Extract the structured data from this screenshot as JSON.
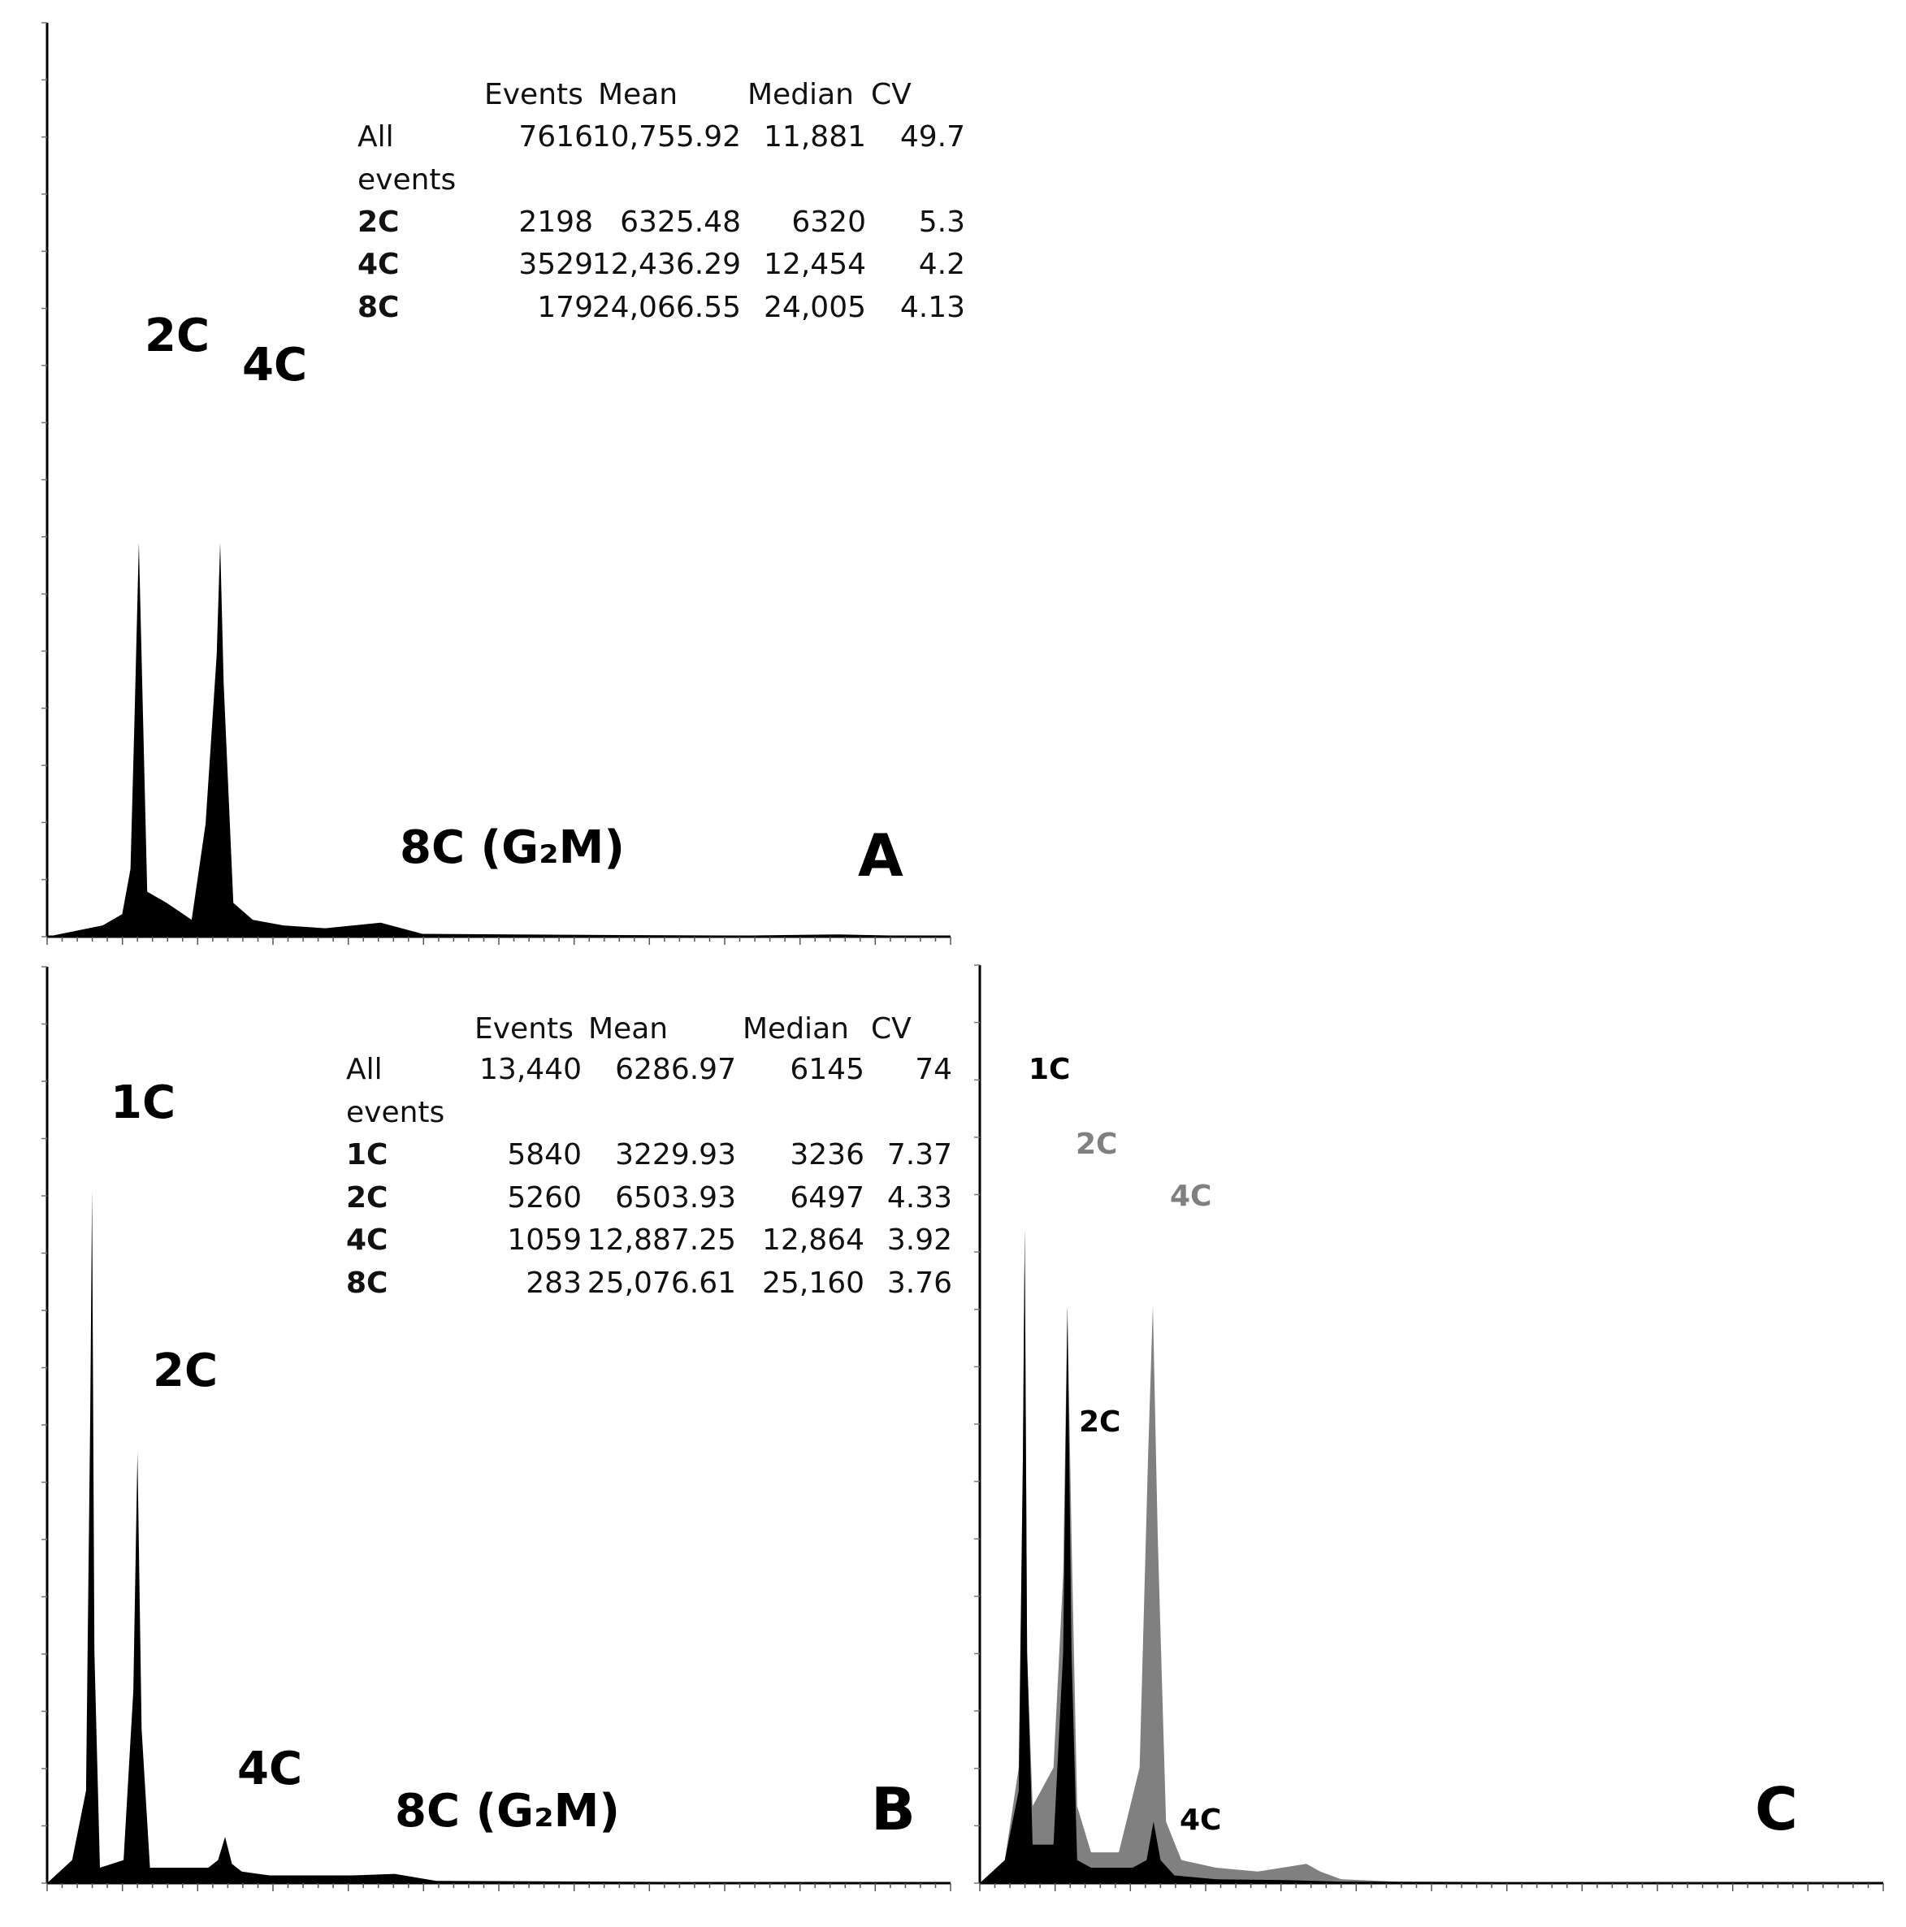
{
  "chart_data": [
    {
      "panel": "A",
      "type": "area",
      "series": [
        {
          "x": [
            0,
            4000,
            5400,
            6000,
            6300,
            6600,
            7200,
            8600,
            10400,
            11400,
            12200,
            12450,
            12700,
            13400,
            14800,
            17000,
            20000,
            24000,
            27000,
            40000,
            50000,
            57000,
            65000
          ],
          "values": [
            0,
            2,
            4,
            12,
            40,
            70,
            8,
            6,
            3,
            20,
            50,
            70,
            45,
            6,
            3,
            2,
            1.5,
            2.5,
            0.5,
            0.3,
            0.2,
            0.4,
            0
          ]
        }
      ],
      "xlim": [
        0,
        65000
      ],
      "ylim": [
        0,
        100
      ],
      "peak_labels": [
        {
          "text": "2C",
          "x": 6300
        },
        {
          "text": "4C",
          "x": 12450
        },
        {
          "text": "8C (G₂M)",
          "x": 24000
        }
      ],
      "stats_table": {
        "columns": [
          "Events",
          "Mean",
          "Median",
          "CV"
        ],
        "rows": [
          {
            "label": "All",
            "label2": "events",
            "bold": false,
            "cells": [
              "7616",
              "10,755.92",
              "11,881",
              "49.7"
            ]
          },
          {
            "label": "2C",
            "bold": true,
            "cells": [
              "2198",
              "6325.48",
              "6320",
              "5.3"
            ]
          },
          {
            "label": "4C",
            "bold": true,
            "cells": [
              "3529",
              "12,436.29",
              "12,454",
              "4.2"
            ]
          },
          {
            "label": "8C",
            "bold": true,
            "cells": [
              "179",
              "24,066.55",
              "24,005",
              "4.13"
            ]
          }
        ]
      }
    },
    {
      "panel": "B",
      "type": "area",
      "series": [
        {
          "x": [
            0,
            1800,
            2800,
            3100,
            3230,
            3400,
            3800,
            5500,
            6200,
            6500,
            6800,
            7400,
            9500,
            11600,
            12300,
            12800,
            13300,
            14000,
            16000,
            22000,
            25000,
            28000,
            40000,
            65000
          ],
          "values": [
            0,
            3,
            12,
            60,
            90,
            30,
            2,
            3,
            25,
            56,
            20,
            2,
            2,
            2,
            3,
            6,
            2.5,
            1.5,
            1,
            1,
            1.2,
            0.3,
            0.2,
            0
          ]
        }
      ],
      "xlim": [
        0,
        65000
      ],
      "ylim": [
        0,
        100
      ],
      "peak_labels": [
        {
          "text": "1C",
          "x": 3230
        },
        {
          "text": "2C",
          "x": 6500
        },
        {
          "text": "4C",
          "x": 12800
        },
        {
          "text": "8C (G₂M)",
          "x": 25000
        }
      ],
      "stats_table": {
        "columns": [
          "Events",
          "Mean",
          "Median",
          "CV"
        ],
        "rows": [
          {
            "label": "All",
            "label2": "events",
            "bold": false,
            "cells": [
              "13,440",
              "6286.97",
              "6145",
              "74"
            ]
          },
          {
            "label": "1C",
            "bold": true,
            "cells": [
              "5840",
              "3229.93",
              "3236",
              "7.37"
            ]
          },
          {
            "label": "2C",
            "bold": true,
            "cells": [
              "5260",
              "6503.93",
              "6497",
              "4.33"
            ]
          },
          {
            "label": "4C",
            "bold": true,
            "cells": [
              "1059",
              "12,887.25",
              "12,864",
              "3.92"
            ]
          },
          {
            "label": "8C",
            "bold": true,
            "cells": [
              "283",
              "25,076.61",
              "25,160",
              "3.76"
            ]
          }
        ]
      }
    },
    {
      "panel": "C",
      "type": "area",
      "series": [
        {
          "color": "#808080",
          "x": [
            0,
            1800,
            2800,
            3100,
            3230,
            3400,
            3800,
            5300,
            6000,
            6300,
            6600,
            7000,
            8000,
            10000,
            11500,
            12100,
            12450,
            12800,
            13400,
            14500,
            17000,
            20000,
            23500,
            24500,
            26000,
            30000,
            65000
          ],
          "values": [
            0,
            3,
            15,
            55,
            85,
            30,
            10,
            15,
            40,
            75,
            45,
            10,
            4,
            4,
            15,
            55,
            75,
            45,
            8,
            3,
            2,
            1.5,
            2.5,
            1.5,
            0.5,
            0.2,
            0
          ]
        },
        {
          "color": "#000000",
          "x": [
            0,
            1800,
            2800,
            3100,
            3230,
            3400,
            3800,
            5300,
            6000,
            6300,
            6600,
            7000,
            8000,
            11000,
            12000,
            12500,
            13000,
            14000,
            17000,
            22000,
            26000,
            65000
          ],
          "values": [
            0,
            3,
            12,
            55,
            85,
            30,
            5,
            5,
            30,
            75,
            30,
            3,
            2,
            2,
            3,
            8,
            3,
            1,
            0.5,
            0.4,
            0.2,
            0
          ]
        }
      ],
      "xlim": [
        0,
        65000
      ],
      "ylim": [
        0,
        100
      ],
      "peak_labels": [
        {
          "text": "1C",
          "x": 3230,
          "color": "#000000"
        },
        {
          "text": "2C",
          "x": 6300,
          "color": "#808080"
        },
        {
          "text": "4C",
          "x": 12450,
          "color": "#808080"
        },
        {
          "text": "2C",
          "x": 6300,
          "color": "#000000"
        },
        {
          "text": "4C",
          "x": 12500,
          "color": "#000000"
        }
      ]
    }
  ],
  "colors": {
    "black_fill": "#000000",
    "grey_fill": "#808080",
    "axis": "#000000",
    "table_text": "#111111"
  }
}
